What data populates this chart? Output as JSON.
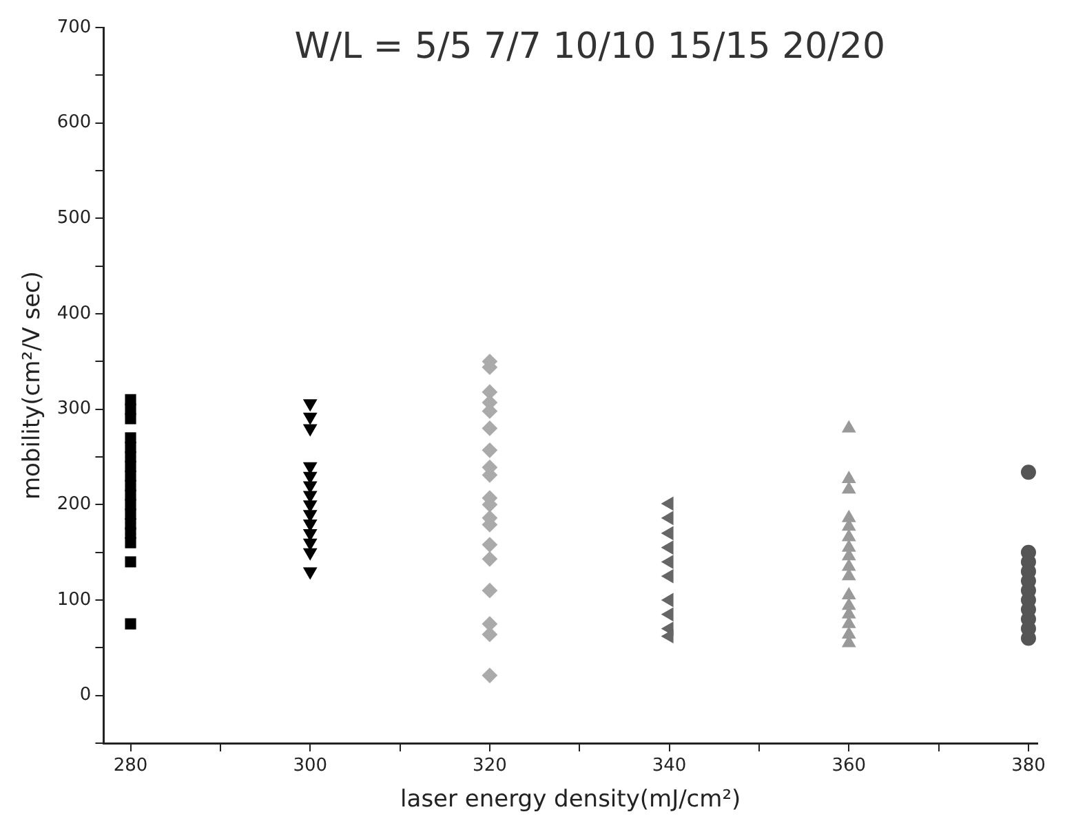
{
  "chart_data": {
    "type": "scatter",
    "title": "W/L = 5/5 7/7 10/10 15/15 20/20",
    "xlabel": "laser energy density(mJ/cm²)",
    "ylabel": "mobility(cm²/V sec)",
    "xlim": [
      277,
      381
    ],
    "xticks": [
      280,
      {
        "value": 290,
        "label": null
      },
      300,
      {
        "value": 310,
        "label": null
      },
      320,
      {
        "value": 330,
        "label": null
      },
      340,
      {
        "value": 350,
        "label": null
      },
      360,
      {
        "value": 370,
        "label": null
      },
      380
    ],
    "ylim": [
      -50,
      700
    ],
    "yticks": [
      {
        "value": -50,
        "label": null
      },
      0,
      {
        "value": 50,
        "label": null
      },
      100,
      {
        "value": 150,
        "label": null
      },
      200,
      {
        "value": 250,
        "label": null
      },
      300,
      {
        "value": 350,
        "label": null
      },
      400,
      {
        "value": 450,
        "label": null
      },
      500,
      {
        "value": 550,
        "label": null
      },
      600,
      {
        "value": 650,
        "label": null
      },
      700
    ],
    "grid": false,
    "legend": false,
    "series": [
      {
        "color": "#000000",
        "marker": "square",
        "x": [
          280,
          280,
          280,
          280,
          280,
          280,
          280,
          280,
          280,
          280,
          280,
          280,
          280,
          280,
          280,
          280,
          280
        ],
        "values": [
          310,
          300,
          290,
          270,
          260,
          250,
          240,
          230,
          220,
          210,
          200,
          190,
          180,
          170,
          160,
          140,
          75
        ]
      },
      {
        "color": "#000000",
        "marker": "triangle-down",
        "x": [
          300,
          300,
          300,
          300,
          300,
          300,
          300,
          300,
          300,
          300,
          300,
          300,
          300,
          300
        ],
        "values": [
          306,
          292,
          280,
          240,
          230,
          220,
          210,
          200,
          190,
          180,
          170,
          160,
          150,
          130
        ]
      },
      {
        "color": "#aaaaaa",
        "marker": "diamond",
        "x": [
          320,
          320,
          320,
          320,
          320,
          320,
          320,
          320,
          320,
          320,
          320,
          320,
          320,
          320,
          320,
          320,
          320,
          320,
          320
        ],
        "values": [
          350,
          344,
          318,
          307,
          298,
          280,
          257,
          239,
          231,
          207,
          200,
          186,
          179,
          158,
          143,
          110,
          75,
          64,
          21
        ]
      },
      {
        "color": "#666666",
        "marker": "triangle-left",
        "x": [
          340,
          340,
          340,
          340,
          340,
          340,
          340,
          340,
          340,
          340
        ],
        "values": [
          201,
          186,
          170,
          155,
          140,
          125,
          100,
          85,
          70,
          62
        ]
      },
      {
        "color": "#999999",
        "marker": "triangle",
        "x": [
          360,
          360,
          360,
          360,
          360,
          360,
          360,
          360,
          360,
          360,
          360,
          360,
          360,
          360,
          360,
          360
        ],
        "values": [
          280,
          227,
          216,
          186,
          177,
          166,
          155,
          146,
          135,
          125,
          105,
          94,
          85,
          75,
          64,
          55
        ]
      },
      {
        "color": "#555555",
        "marker": "circle",
        "x": [
          380,
          380,
          380,
          380,
          380,
          380,
          380,
          380,
          380,
          380,
          380
        ],
        "values": [
          234,
          150,
          140,
          130,
          120,
          110,
          100,
          90,
          80,
          70,
          60
        ]
      }
    ]
  }
}
